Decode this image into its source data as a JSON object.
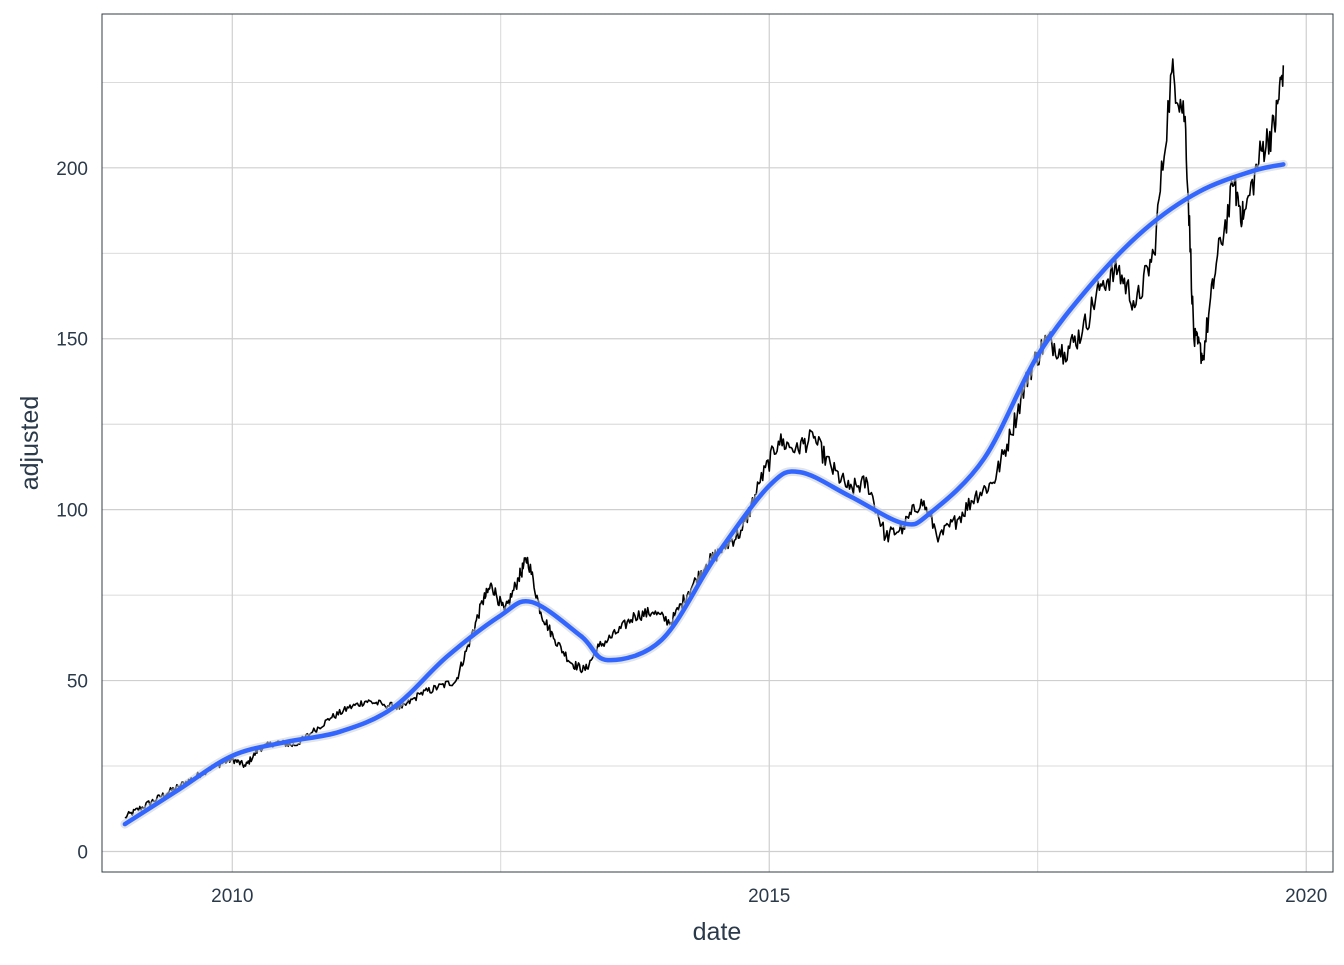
{
  "chart_data": {
    "type": "line",
    "title": "",
    "xlabel": "date",
    "ylabel": "adjusted",
    "xlim": [
      "2008-10-15",
      "2020-04-01"
    ],
    "ylim": [
      -6,
      245
    ],
    "x_ticks": [
      "2010-01-01",
      "2015-01-01",
      "2020-01-01"
    ],
    "x_tick_labels": [
      "2010",
      "2015",
      "2020"
    ],
    "y_ticks": [
      0,
      50,
      100,
      150,
      200
    ],
    "y_tick_labels": [
      "0",
      "50",
      "100",
      "150",
      "200"
    ],
    "grid": true,
    "legend": "none",
    "series": [
      {
        "style": "line",
        "color": "#000000",
        "x": [
          "2009-01-01",
          "2009-03-01",
          "2009-05-01",
          "2009-07-01",
          "2009-09-01",
          "2009-11-01",
          "2010-01-01",
          "2010-02-15",
          "2010-04-01",
          "2010-06-01",
          "2010-08-01",
          "2010-10-01",
          "2010-12-01",
          "2011-02-01",
          "2011-04-01",
          "2011-06-01",
          "2011-08-01",
          "2011-10-01",
          "2011-12-01",
          "2012-02-01",
          "2012-03-20",
          "2012-05-01",
          "2012-06-01",
          "2012-07-15",
          "2012-09-01",
          "2012-10-01",
          "2012-11-15",
          "2013-01-01",
          "2013-03-01",
          "2013-04-15",
          "2013-06-01",
          "2013-08-01",
          "2013-10-01",
          "2013-12-01",
          "2014-02-01",
          "2014-04-01",
          "2014-06-01",
          "2014-08-01",
          "2014-10-01",
          "2014-12-01",
          "2015-02-01",
          "2015-04-01",
          "2015-06-01",
          "2015-08-01",
          "2015-10-01",
          "2015-12-01",
          "2016-02-01",
          "2016-04-01",
          "2016-06-01",
          "2016-08-01",
          "2016-10-01",
          "2016-12-01",
          "2017-02-01",
          "2017-04-01",
          "2017-06-01",
          "2017-08-01",
          "2017-10-01",
          "2017-12-01",
          "2018-02-01",
          "2018-04-01",
          "2018-06-01",
          "2018-08-01",
          "2018-10-01",
          "2018-11-15",
          "2018-12-15",
          "2019-01-15",
          "2019-03-01",
          "2019-05-01",
          "2019-06-01",
          "2019-08-01",
          "2019-09-15",
          "2019-10-15"
        ],
        "y": [
          10,
          13,
          16,
          19,
          22,
          25,
          27,
          25,
          30,
          32,
          31,
          35,
          39,
          42,
          44,
          43,
          42,
          46,
          48,
          50,
          62,
          73,
          78,
          70,
          80,
          86,
          70,
          62,
          55,
          53,
          60,
          64,
          69,
          70,
          67,
          76,
          84,
          89,
          94,
          108,
          120,
          118,
          121,
          112,
          106,
          108,
          92,
          95,
          103,
          92,
          97,
          104,
          108,
          122,
          140,
          150,
          146,
          152,
          166,
          170,
          160,
          175,
          228,
          215,
          150,
          145,
          172,
          195,
          185,
          205,
          212,
          230
        ]
      },
      {
        "style": "smooth",
        "color": "#3366ff",
        "x": [
          "2009-01-01",
          "2009-07-01",
          "2010-01-01",
          "2010-07-01",
          "2011-01-01",
          "2011-07-01",
          "2012-01-01",
          "2012-07-01",
          "2012-10-15",
          "2013-04-01",
          "2013-07-01",
          "2014-01-01",
          "2014-07-01",
          "2015-01-01",
          "2015-04-15",
          "2015-10-01",
          "2016-04-01",
          "2016-07-01",
          "2017-01-01",
          "2017-07-01",
          "2018-01-01",
          "2018-07-01",
          "2019-01-01",
          "2019-07-01",
          "2019-10-15"
        ],
        "y": [
          8,
          18,
          28,
          32,
          35,
          42,
          57,
          69,
          73,
          63,
          56,
          62,
          86,
          107,
          111,
          104,
          96,
          99,
          115,
          145,
          166,
          182,
          193,
          199,
          201
        ]
      }
    ]
  }
}
